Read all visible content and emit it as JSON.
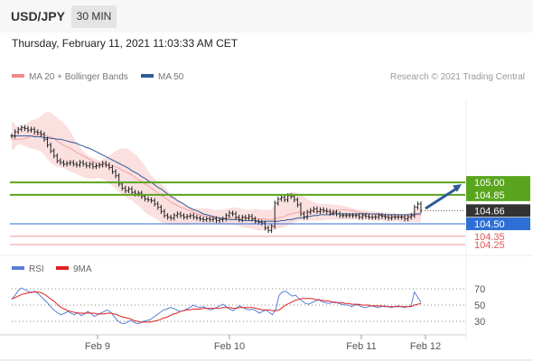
{
  "header": {
    "pair": "USD/JPY",
    "timeframe": "30 MIN"
  },
  "timestamp": "Thursday, February 11, 2021 11:03:33 AM CET",
  "legend": {
    "items": [
      {
        "label": "MA 20 + Bollinger Bands",
        "color": "#f08a8a"
      },
      {
        "label": "MA 50",
        "color": "#2e5b96"
      }
    ],
    "credit": "Research © 2021 Trading Central"
  },
  "rsi_legend": {
    "items": [
      {
        "label": "RSI",
        "color": "#5a7fd6"
      },
      {
        "label": "9MA",
        "color": "#e02020"
      }
    ]
  },
  "chart_data": [
    {
      "type": "candlestick",
      "x_ticks": [
        "Feb 9",
        "Feb 10",
        "Feb 11",
        "Feb 12"
      ],
      "ylim": [
        104.25,
        105.85
      ],
      "price_levels": [
        {
          "label": "105.00",
          "value": 105.0,
          "kind": "resistance",
          "color": "#5aa51e"
        },
        {
          "label": "104.85",
          "value": 104.85,
          "kind": "resistance",
          "color": "#5aa51e"
        },
        {
          "label": "104.66",
          "value": 104.66,
          "kind": "last",
          "color": "#333333"
        },
        {
          "label": "104.50",
          "value": 104.5,
          "kind": "pivot",
          "color": "#2e6fd6"
        },
        {
          "label": "104.35",
          "value": 104.35,
          "kind": "support",
          "color": "#e05555"
        },
        {
          "label": "104.25",
          "value": 104.25,
          "kind": "support",
          "color": "#e05555"
        }
      ],
      "close": [
        105.56,
        105.61,
        105.64,
        105.66,
        105.65,
        105.63,
        105.64,
        105.61,
        105.6,
        105.58,
        105.52,
        105.45,
        105.38,
        105.32,
        105.26,
        105.24,
        105.22,
        105.23,
        105.24,
        105.22,
        105.21,
        105.24,
        105.22,
        105.2,
        105.22,
        105.19,
        105.2,
        105.21,
        105.23,
        105.21,
        105.18,
        105.13,
        105.08,
        104.98,
        104.93,
        104.9,
        104.92,
        104.88,
        104.86,
        104.87,
        104.83,
        104.8,
        104.79,
        104.78,
        104.74,
        104.7,
        104.65,
        104.6,
        104.58,
        104.57,
        104.6,
        104.62,
        104.6,
        104.58,
        104.59,
        104.6,
        104.58,
        104.57,
        104.56,
        104.55,
        104.56,
        104.55,
        104.56,
        104.54,
        104.55,
        104.56,
        104.6,
        104.63,
        104.62,
        104.58,
        104.55,
        104.58,
        104.57,
        104.59,
        104.56,
        104.53,
        104.52,
        104.51,
        104.45,
        104.42,
        104.47,
        104.75,
        104.8,
        104.82,
        104.79,
        104.84,
        104.83,
        104.79,
        104.73,
        104.62,
        104.58,
        104.64,
        104.66,
        104.68,
        104.65,
        104.67,
        104.66,
        104.65,
        104.63,
        104.64,
        104.62,
        104.6,
        104.6,
        104.6,
        104.6,
        104.6,
        104.6,
        104.58,
        104.6,
        104.59,
        104.58,
        104.58,
        104.58,
        104.6,
        104.59,
        104.58,
        104.57,
        104.58,
        104.58,
        104.58,
        104.58,
        104.56,
        104.58,
        104.6,
        104.7,
        104.74,
        104.66
      ],
      "ma20": [
        105.52,
        105.52,
        105.52,
        105.52,
        105.53,
        105.54,
        105.56,
        105.57,
        105.57,
        105.58,
        105.57,
        105.56,
        105.55,
        105.53,
        105.5,
        105.47,
        105.45,
        105.43,
        105.41,
        105.39,
        105.36,
        105.34,
        105.32,
        105.3,
        105.28,
        105.25,
        105.24,
        105.22,
        105.21,
        105.21,
        105.2,
        105.2,
        105.19,
        105.17,
        105.15,
        105.13,
        105.11,
        105.09,
        105.06,
        105.03,
        105.01,
        104.98,
        104.96,
        104.93,
        104.9,
        104.87,
        104.84,
        104.82,
        104.79,
        104.76,
        104.74,
        104.72,
        104.7,
        104.69,
        104.67,
        104.66,
        104.64,
        104.62,
        104.61,
        104.6,
        104.59,
        104.58,
        104.58,
        104.57,
        104.57,
        104.57,
        104.57,
        104.57,
        104.57,
        104.57,
        104.57,
        104.57,
        104.57,
        104.57,
        104.57,
        104.57,
        104.56,
        104.56,
        104.56,
        104.55,
        104.55,
        104.56,
        104.57,
        104.58,
        104.59,
        104.61,
        104.62,
        104.63,
        104.64,
        104.64,
        104.64,
        104.64,
        104.65,
        104.65,
        104.65,
        104.65,
        104.65,
        104.65,
        104.65,
        104.65,
        104.66,
        104.67,
        104.67,
        104.67,
        104.66,
        104.66,
        104.65,
        104.64,
        104.63,
        104.63,
        104.62,
        104.62,
        104.61,
        104.6,
        104.6,
        104.59,
        104.59,
        104.59,
        104.59,
        104.59,
        104.59,
        104.59,
        104.59,
        104.59,
        104.6,
        104.61,
        104.61
      ],
      "ma20_upper": [
        105.74,
        105.7,
        105.66,
        105.68,
        105.7,
        105.72,
        105.75,
        105.76,
        105.77,
        105.8,
        105.83,
        105.85,
        105.84,
        105.81,
        105.78,
        105.75,
        105.72,
        105.67,
        105.62,
        105.55,
        105.48,
        105.42,
        105.38,
        105.34,
        105.31,
        105.3,
        105.28,
        105.26,
        105.28,
        105.3,
        105.32,
        105.35,
        105.38,
        105.4,
        105.41,
        105.41,
        105.4,
        105.37,
        105.34,
        105.3,
        105.25,
        105.2,
        105.14,
        105.08,
        105.04,
        105.01,
        104.98,
        104.95,
        104.9,
        104.86,
        104.83,
        104.79,
        104.75,
        104.73,
        104.71,
        104.7,
        104.69,
        104.69,
        104.69,
        104.69,
        104.69,
        104.68,
        104.67,
        104.67,
        104.67,
        104.67,
        104.68,
        104.69,
        104.7,
        104.7,
        104.69,
        104.68,
        104.67,
        104.67,
        104.67,
        104.68,
        104.68,
        104.67,
        104.67,
        104.67,
        104.67,
        104.72,
        104.78,
        104.82,
        104.84,
        104.86,
        104.88,
        104.88,
        104.87,
        104.85,
        104.83,
        104.8,
        104.78,
        104.76,
        104.75,
        104.74,
        104.74,
        104.74,
        104.74,
        104.73,
        104.73,
        104.72,
        104.72,
        104.71,
        104.7,
        104.69,
        104.68,
        104.67,
        104.67,
        104.66,
        104.66,
        104.65,
        104.65,
        104.64,
        104.64,
        104.64,
        104.63,
        104.63,
        104.63,
        104.62,
        104.62,
        104.62,
        104.63,
        104.64,
        104.67,
        104.7,
        104.71
      ],
      "ma20_lower": [
        105.39,
        105.41,
        105.46,
        105.45,
        105.44,
        105.42,
        105.41,
        105.4,
        105.39,
        105.37,
        105.33,
        105.28,
        105.24,
        105.21,
        105.19,
        105.18,
        105.17,
        105.15,
        105.13,
        105.12,
        105.1,
        105.08,
        105.06,
        105.05,
        105.04,
        105.04,
        105.05,
        105.05,
        105.04,
        105.02,
        104.99,
        104.96,
        104.92,
        104.89,
        104.86,
        104.83,
        104.8,
        104.78,
        104.75,
        104.72,
        104.68,
        104.64,
        104.61,
        104.59,
        104.57,
        104.54,
        104.52,
        104.51,
        104.5,
        104.5,
        104.49,
        104.49,
        104.49,
        104.49,
        104.49,
        104.5,
        104.5,
        104.5,
        104.5,
        104.5,
        104.5,
        104.5,
        104.5,
        104.5,
        104.5,
        104.49,
        104.49,
        104.49,
        104.49,
        104.48,
        104.47,
        104.46,
        104.45,
        104.45,
        104.44,
        104.43,
        104.42,
        104.42,
        104.42,
        104.42,
        104.42,
        104.43,
        104.44,
        104.45,
        104.46,
        104.48,
        104.5,
        104.52,
        104.53,
        104.54,
        104.54,
        104.54,
        104.54,
        104.54,
        104.54,
        104.54,
        104.54,
        104.55,
        104.55,
        104.55,
        104.55,
        104.55,
        104.55,
        104.55,
        104.55,
        104.55,
        104.55,
        104.55,
        104.55,
        104.55,
        104.55,
        104.54,
        104.54,
        104.54,
        104.54,
        104.53,
        104.53,
        104.53,
        104.53,
        104.53,
        104.52,
        104.52,
        104.52,
        104.52,
        104.52,
        104.52,
        104.52
      ],
      "ma50": [
        105.56,
        105.56,
        105.56,
        105.56,
        105.56,
        105.56,
        105.56,
        105.55,
        105.55,
        105.55,
        105.54,
        105.54,
        105.53,
        105.53,
        105.52,
        105.52,
        105.51,
        105.5,
        105.49,
        105.48,
        105.47,
        105.45,
        105.44,
        105.42,
        105.41,
        105.39,
        105.37,
        105.35,
        105.33,
        105.31,
        105.29,
        105.27,
        105.25,
        105.23,
        105.21,
        105.19,
        105.17,
        105.14,
        105.12,
        105.1,
        105.07,
        105.05,
        105.02,
        105.0,
        104.97,
        104.94,
        104.92,
        104.89,
        104.86,
        104.83,
        104.81,
        104.78,
        104.76,
        104.74,
        104.71,
        104.69,
        104.67,
        104.66,
        104.64,
        104.62,
        104.61,
        104.6,
        104.59,
        104.58,
        104.57,
        104.56,
        104.56,
        104.55,
        104.55,
        104.55,
        104.55,
        104.54,
        104.54,
        104.54,
        104.54,
        104.54,
        104.53,
        104.53,
        104.53,
        104.53,
        104.53,
        104.53,
        104.53,
        104.54,
        104.54,
        104.55,
        104.55,
        104.56,
        104.57,
        104.57,
        104.58,
        104.59,
        104.59,
        104.6,
        104.6,
        104.61,
        104.61,
        104.61,
        104.61,
        104.62,
        104.62,
        104.62,
        104.62,
        104.62,
        104.62,
        104.62,
        104.62,
        104.62,
        104.62,
        104.62,
        104.62,
        104.62,
        104.62,
        104.62,
        104.61,
        104.61,
        104.61,
        104.61,
        104.61,
        104.61,
        104.61,
        104.61,
        104.61,
        104.61,
        104.62,
        104.62,
        104.62
      ],
      "forecast_arrow": {
        "from": 104.66,
        "to": 105.0,
        "direction": "up"
      }
    },
    {
      "type": "line",
      "name": "RSI",
      "ylim": [
        20,
        80
      ],
      "y_ticks": [
        70,
        50,
        30
      ],
      "rsi": [
        57,
        62,
        68,
        71,
        69,
        67,
        65,
        67,
        64,
        60,
        56,
        52,
        47,
        43,
        40,
        38,
        40,
        42,
        40,
        38,
        41,
        37,
        39,
        42,
        40,
        36,
        38,
        40,
        42,
        44,
        41,
        36,
        31,
        28,
        27,
        29,
        31,
        29,
        27,
        28,
        30,
        31,
        32,
        35,
        38,
        41,
        44,
        45,
        47,
        46,
        44,
        42,
        43,
        45,
        47,
        50,
        48,
        47,
        48,
        46,
        44,
        45,
        47,
        49,
        51,
        48,
        45,
        43,
        46,
        49,
        47,
        45,
        44,
        45,
        43,
        40,
        42,
        44,
        41,
        38,
        45,
        62,
        66,
        67,
        64,
        61,
        62,
        58,
        55,
        52,
        51,
        53,
        55,
        57,
        54,
        53,
        52,
        53,
        54,
        52,
        51,
        50,
        50,
        48,
        50,
        50,
        48,
        47,
        48,
        49,
        48,
        47,
        48,
        49,
        48,
        47,
        48,
        49,
        48,
        47,
        48,
        49,
        66,
        60,
        53
      ],
      "ma9": [
        58,
        59,
        61,
        63,
        64,
        65,
        66,
        66,
        66,
        65,
        63,
        60,
        57,
        54,
        50,
        47,
        45,
        43,
        42,
        41,
        40,
        40,
        40,
        40,
        40,
        40,
        39,
        39,
        39,
        40,
        40,
        39,
        38,
        36,
        35,
        34,
        33,
        31,
        30,
        29,
        29,
        29,
        29,
        30,
        31,
        32,
        34,
        35,
        37,
        39,
        40,
        42,
        43,
        44,
        44,
        45,
        45,
        45,
        46,
        46,
        46,
        46,
        46,
        46,
        47,
        47,
        47,
        46,
        46,
        47,
        47,
        47,
        47,
        47,
        46,
        45,
        44,
        44,
        44,
        43,
        43,
        44,
        47,
        50,
        52,
        54,
        56,
        57,
        58,
        58,
        58,
        58,
        57,
        56,
        56,
        55,
        55,
        54,
        53,
        53,
        53,
        52,
        52,
        51,
        51,
        51,
        50,
        50,
        50,
        49,
        49,
        49,
        49,
        48,
        48,
        48,
        48,
        48,
        48,
        48,
        48,
        48,
        50,
        51,
        52
      ]
    }
  ]
}
